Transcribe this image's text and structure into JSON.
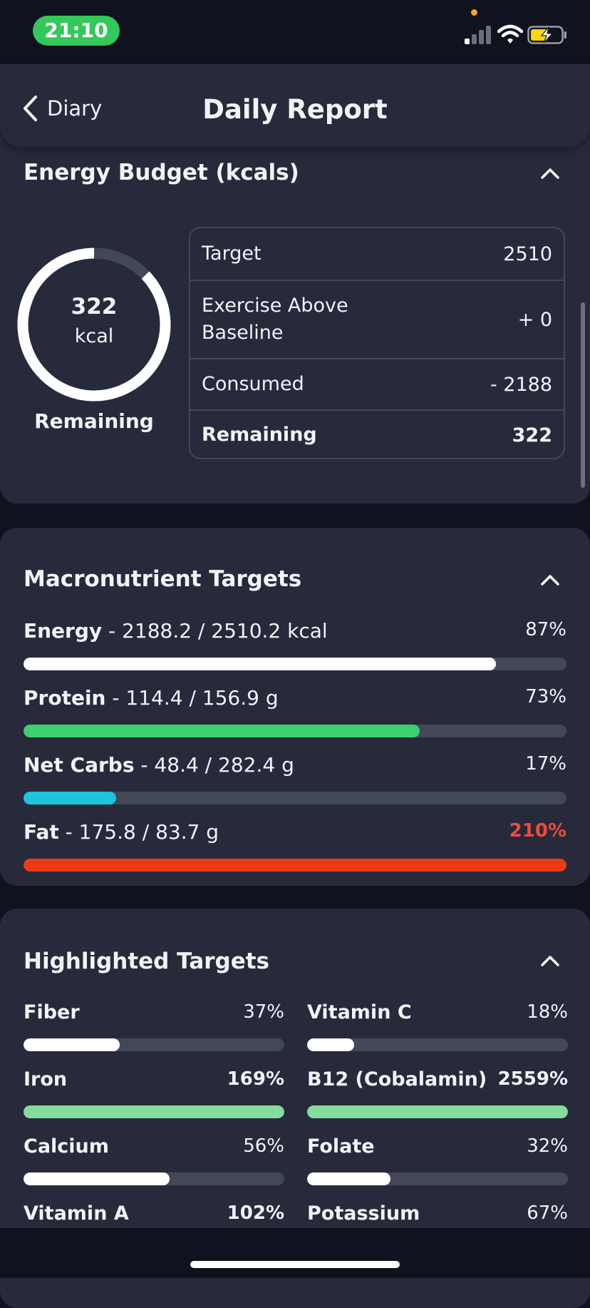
{
  "status_bar": {
    "time": "21:10",
    "icons": [
      "cellular-signal-icon",
      "wifi-icon",
      "battery-charging-icon"
    ],
    "time_pill_color": "#34c759"
  },
  "header": {
    "back_label": "Diary",
    "title": "Daily Report"
  },
  "energy_budget": {
    "title": "Energy Budget (kcals)",
    "ring": {
      "value": "322",
      "unit": "kcal",
      "caption": "Remaining",
      "remaining_fraction": 0.128
    },
    "rows": [
      {
        "label": "Target",
        "value": "2510",
        "bold": false
      },
      {
        "label": "Exercise Above Baseline",
        "value": "+ 0",
        "bold": false
      },
      {
        "label": "Consumed",
        "value": "- 2188",
        "bold": false
      },
      {
        "label": "Remaining",
        "value": "322",
        "bold": true
      }
    ]
  },
  "macronutrients": {
    "title": "Macronutrient Targets",
    "items": [
      {
        "name": "Energy",
        "detail": " - 2188.2 / 2510.2 kcal",
        "percent": "87%",
        "fraction": 0.87,
        "color": "#ffffff",
        "pct_color": "#f2f3f7",
        "pct_bold": false
      },
      {
        "name": "Protein",
        "detail": " - 114.4 / 156.9 g",
        "percent": "73%",
        "fraction": 0.73,
        "color": "#3ecf6e",
        "pct_color": "#f2f3f7",
        "pct_bold": false
      },
      {
        "name": "Net Carbs",
        "detail": " - 48.4 / 282.4 g",
        "percent": "17%",
        "fraction": 0.17,
        "color": "#1fc3dc",
        "pct_color": "#f2f3f7",
        "pct_bold": false
      },
      {
        "name": "Fat",
        "detail": " - 175.8 / 83.7 g",
        "percent": "210%",
        "fraction": 1.0,
        "color": "#ec3b14",
        "pct_color": "#ef4a3a",
        "pct_bold": true
      }
    ]
  },
  "highlighted": {
    "title": "Highlighted Targets",
    "items": [
      {
        "name": "Fiber",
        "percent": "37%",
        "fraction": 0.37,
        "color": "#ffffff",
        "bold_pct": false
      },
      {
        "name": "Vitamin C",
        "percent": "18%",
        "fraction": 0.18,
        "color": "#ffffff",
        "bold_pct": false
      },
      {
        "name": "Iron",
        "percent": "169%",
        "fraction": 1.0,
        "color": "#86dc9c",
        "bold_pct": true
      },
      {
        "name": "B12 (Cobalamin)",
        "percent": "2559%",
        "fraction": 1.0,
        "color": "#86dc9c",
        "bold_pct": true
      },
      {
        "name": "Calcium",
        "percent": "56%",
        "fraction": 0.56,
        "color": "#ffffff",
        "bold_pct": false
      },
      {
        "name": "Folate",
        "percent": "32%",
        "fraction": 0.32,
        "color": "#ffffff",
        "bold_pct": false
      },
      {
        "name": "Vitamin A",
        "percent": "102%",
        "fraction": 1.0,
        "color": "#86dc9c",
        "bold_pct": true
      },
      {
        "name": "Potassium",
        "percent": "67%",
        "fraction": 0.67,
        "color": "#ffffff",
        "bold_pct": false
      }
    ]
  },
  "theme": {
    "card_bg": "#262a3b",
    "page_bg": "#10121f",
    "track": "#434858"
  }
}
